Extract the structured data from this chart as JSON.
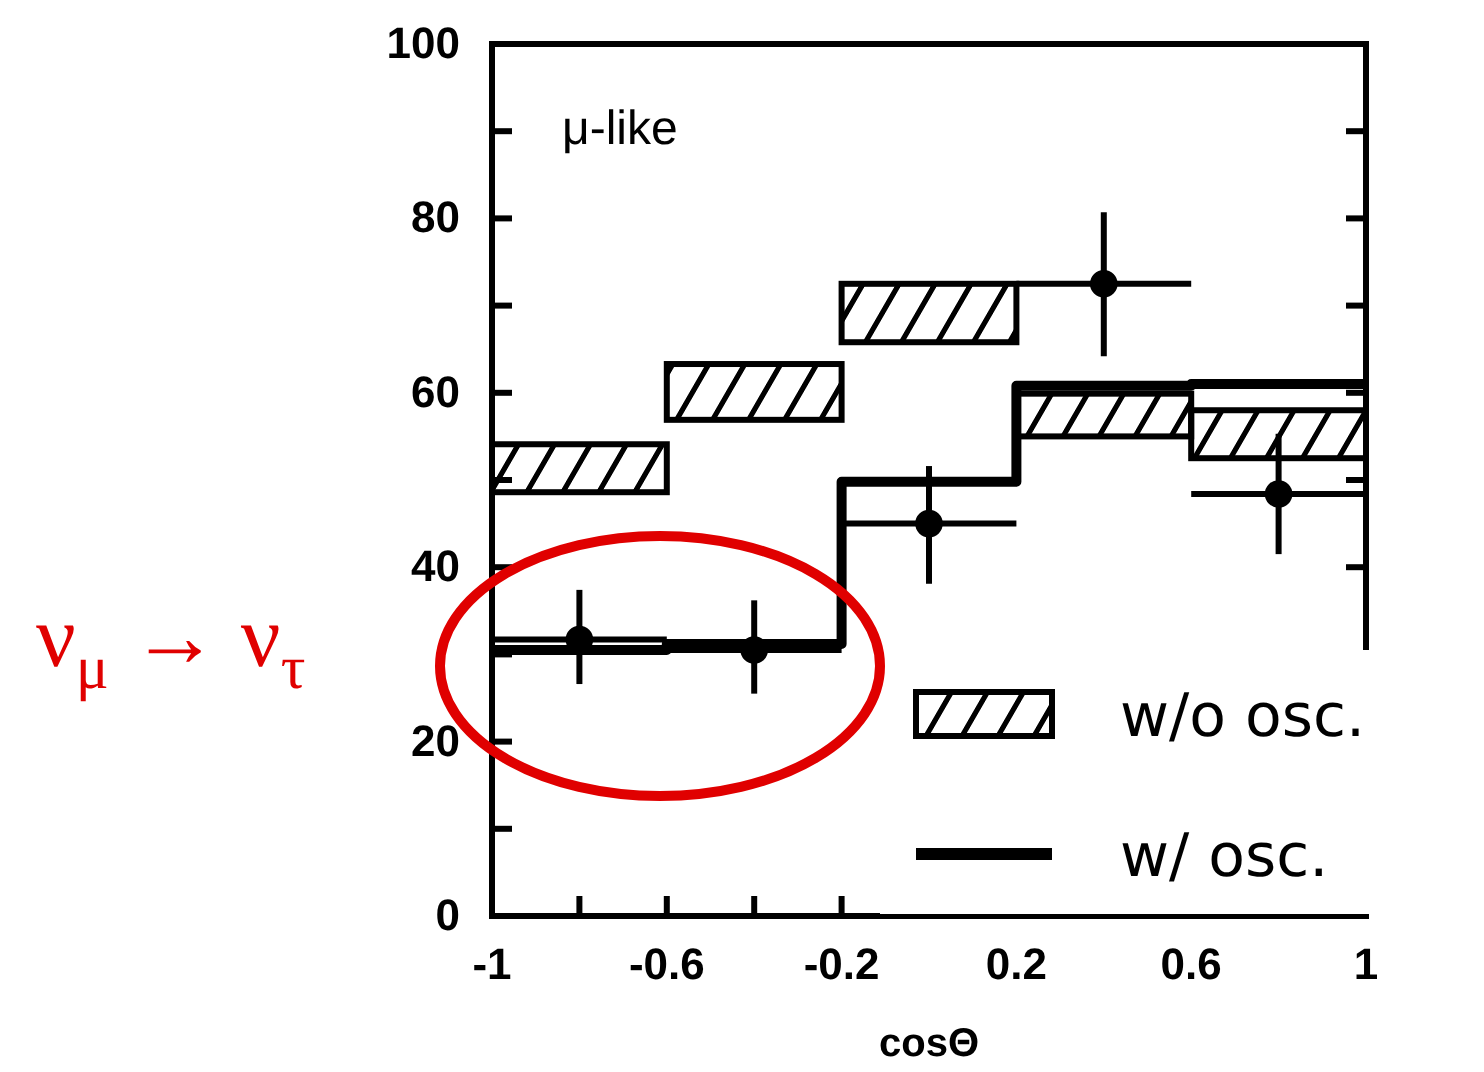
{
  "chart_data": {
    "type": "bar",
    "title": "μ-like",
    "xlabel": "cosΘ",
    "xlim": [
      -1,
      1
    ],
    "xticks": [
      -1,
      {
        "value": -0.8,
        "label": null
      },
      -0.6,
      {
        "value": -0.4,
        "label": null
      },
      -0.2,
      {
        "value": 0,
        "label": null
      },
      0.2,
      {
        "value": 0.4,
        "label": null
      },
      0.6,
      {
        "value": 0.8,
        "label": null
      },
      1
    ],
    "ylim": [
      0,
      100
    ],
    "yticks": [
      0,
      {
        "value": 10,
        "label": null
      },
      20,
      {
        "value": 30,
        "label": null
      },
      40,
      {
        "value": 50,
        "label": null
      },
      60,
      {
        "value": 70,
        "label": null
      },
      80,
      {
        "value": 90,
        "label": null
      },
      100
    ],
    "series": [
      {
        "name": "w/o osc.",
        "color": "#000000",
        "x": [
          -0.8,
          -0.4,
          0,
          0.4,
          0.8
        ],
        "base": [
          48.6,
          56.9,
          65.8,
          55.0,
          52.5
        ],
        "values": [
          5.5,
          6.4,
          6.7,
          4.9,
          5.5
        ]
      },
      {
        "name": "w/ osc.",
        "type": "line",
        "color": "#000000",
        "x": [
          -1,
          -0.6,
          -0.6,
          -0.2,
          -0.2,
          0.2,
          0.2,
          0.6,
          0.6,
          1
        ],
        "values": [
          30.5,
          30.5,
          31.2,
          31.2,
          49.8,
          49.8,
          60.8,
          60.8,
          61.0,
          61.0
        ]
      },
      {
        "type": "scatter",
        "color": "#000000",
        "marker": "circle",
        "x": [
          -0.8,
          -0.4,
          0,
          0.4,
          0.8
        ],
        "values": [
          31.7,
          30.5,
          45.0,
          72.5,
          48.4
        ],
        "errors": [
          [
            26.6,
            37.4
          ],
          [
            25.5,
            36.2
          ],
          [
            38.1,
            51.6
          ],
          [
            64.2,
            80.7
          ],
          [
            41.5,
            55.3
          ]
        ],
        "xerrors": [
          0.2,
          0.2,
          0.2,
          0.2,
          0.2
        ]
      }
    ],
    "annotations": [
      "ν$_{μ}$ → ν$_{τ}$"
    ],
    "legend": "bottom right",
    "grid": false
  }
}
